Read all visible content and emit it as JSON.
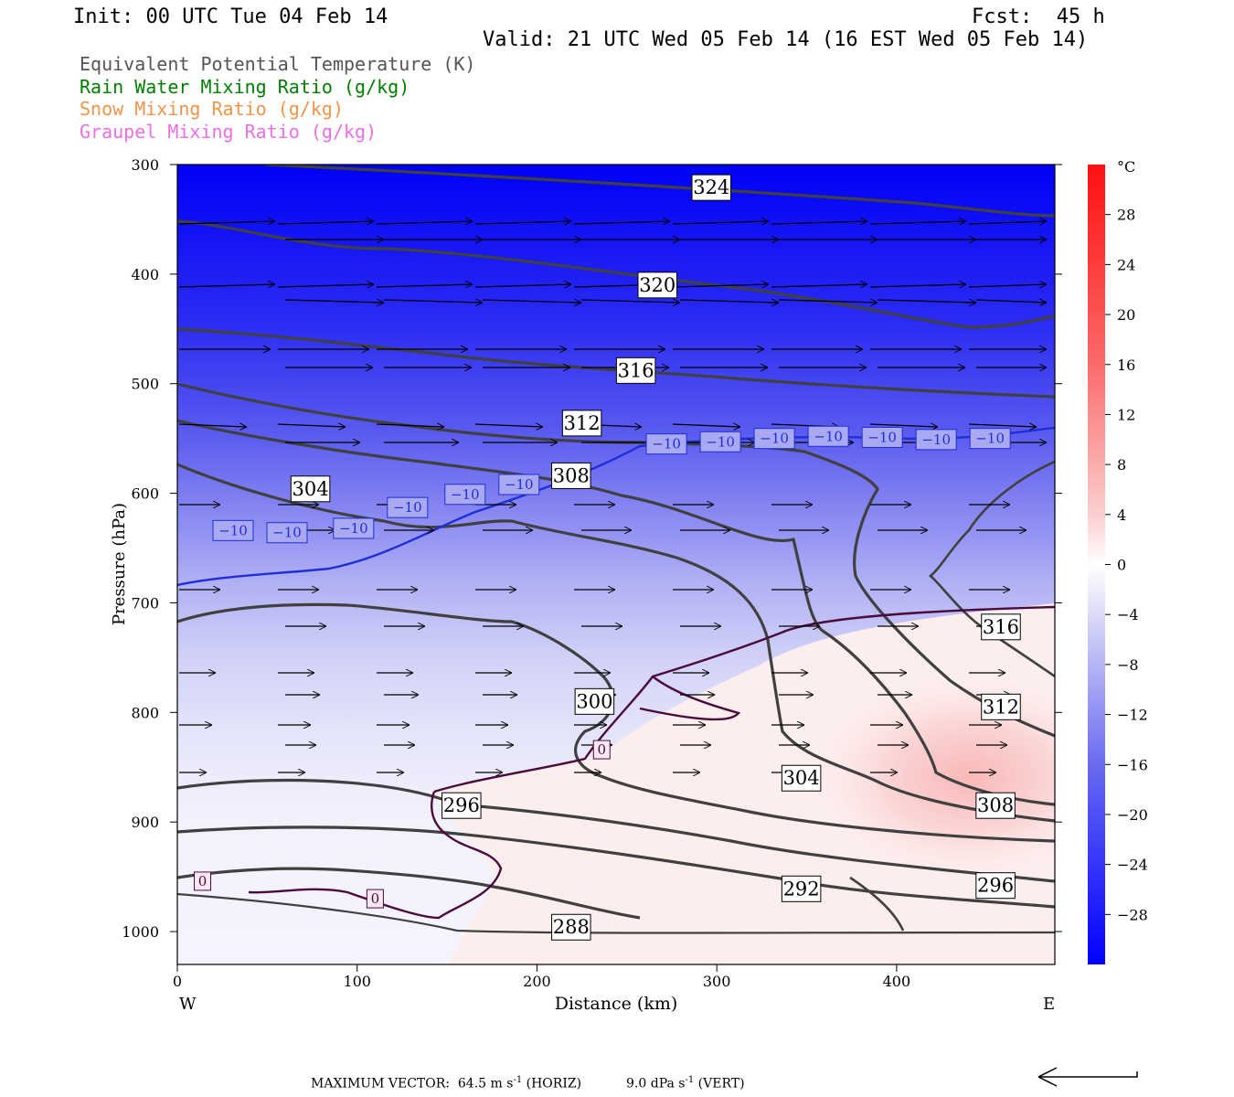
{
  "header": {
    "init": "Init: 00 UTC Tue 04 Feb 14",
    "fcst": "Fcst:  45 h",
    "valid": "Valid: 21 UTC Wed 05 Feb 14 (16 EST Wed 05 Feb 14)"
  },
  "legend": [
    {
      "text": "Equivalent Potential Temperature (K)",
      "color": "#555555"
    },
    {
      "text": "Rain Water Mixing Ratio (g/kg)",
      "color": "#007f00"
    },
    {
      "text": "Snow Mixing Ratio (g/kg)",
      "color": "#f0944c"
    },
    {
      "text": "Graupel Mixing Ratio (g/kg)",
      "color": "#ee6ee8"
    }
  ],
  "chart_data": {
    "type": "heatmap",
    "xlabel": "Distance (km)",
    "ylabel": "Pressure (hPa)",
    "x_ticks": [
      0,
      100,
      200,
      300,
      400
    ],
    "y_ticks": [
      300,
      400,
      500,
      600,
      700,
      800,
      900,
      1000
    ],
    "xlim": [
      0,
      488
    ],
    "ylim": [
      300,
      1030
    ],
    "x_end_labels": {
      "left": "W",
      "right": "E"
    },
    "colorbar": {
      "unit": "°C",
      "ticks": [
        28,
        24,
        20,
        16,
        12,
        8,
        4,
        0,
        -4,
        -8,
        -12,
        -16,
        -20,
        -24,
        -28
      ],
      "range": [
        -32,
        32
      ]
    },
    "theta_e_labels": [
      {
        "value": "324",
        "x": 297,
        "p": 321
      },
      {
        "value": "320",
        "x": 267,
        "p": 410
      },
      {
        "value": "316",
        "x": 255,
        "p": 488
      },
      {
        "value": "312",
        "x": 225,
        "p": 536
      },
      {
        "value": "308",
        "x": 219,
        "p": 584
      },
      {
        "value": "304",
        "x": 74,
        "p": 596
      },
      {
        "value": "300",
        "x": 232,
        "p": 790
      },
      {
        "value": "296",
        "x": 158,
        "p": 885
      },
      {
        "value": "292",
        "x": 347,
        "p": 961
      },
      {
        "value": "288",
        "x": 219,
        "p": 996
      },
      {
        "value": "304",
        "x": 347,
        "p": 860
      },
      {
        "value": "316",
        "x": 458,
        "p": 722
      },
      {
        "value": "312",
        "x": 458,
        "p": 795
      },
      {
        "value": "308",
        "x": 455,
        "p": 885
      },
      {
        "value": "296",
        "x": 455,
        "p": 958
      }
    ],
    "temp_contour_labels": [
      {
        "value": "-10",
        "x": 31,
        "p": 634
      },
      {
        "value": "-10",
        "x": 61,
        "p": 636
      },
      {
        "value": "-10",
        "x": 98,
        "p": 632
      },
      {
        "value": "-10",
        "x": 128,
        "p": 613
      },
      {
        "value": "-10",
        "x": 160,
        "p": 601
      },
      {
        "value": "-10",
        "x": 190,
        "p": 592
      },
      {
        "value": "-10",
        "x": 272,
        "p": 555
      },
      {
        "value": "-10",
        "x": 302,
        "p": 553
      },
      {
        "value": "-10",
        "x": 332,
        "p": 550
      },
      {
        "value": "-10",
        "x": 362,
        "p": 548
      },
      {
        "value": "-10",
        "x": 392,
        "p": 549
      },
      {
        "value": "-10",
        "x": 422,
        "p": 551
      },
      {
        "value": "-10",
        "x": 452,
        "p": 550
      },
      {
        "value": "0",
        "x": 236,
        "p": 834
      },
      {
        "value": "0",
        "x": 14,
        "p": 954
      },
      {
        "value": "0",
        "x": 110,
        "p": 970
      }
    ]
  },
  "footer": {
    "max_vector_label": "MAXIMUM VECTOR:",
    "horiz_value": "64.5 m s",
    "horiz_exp": "-1",
    "horiz_tag": "(HORIZ)",
    "vert_value": "9.0 dPa s",
    "vert_exp": "-1",
    "vert_tag": "(VERT)"
  }
}
